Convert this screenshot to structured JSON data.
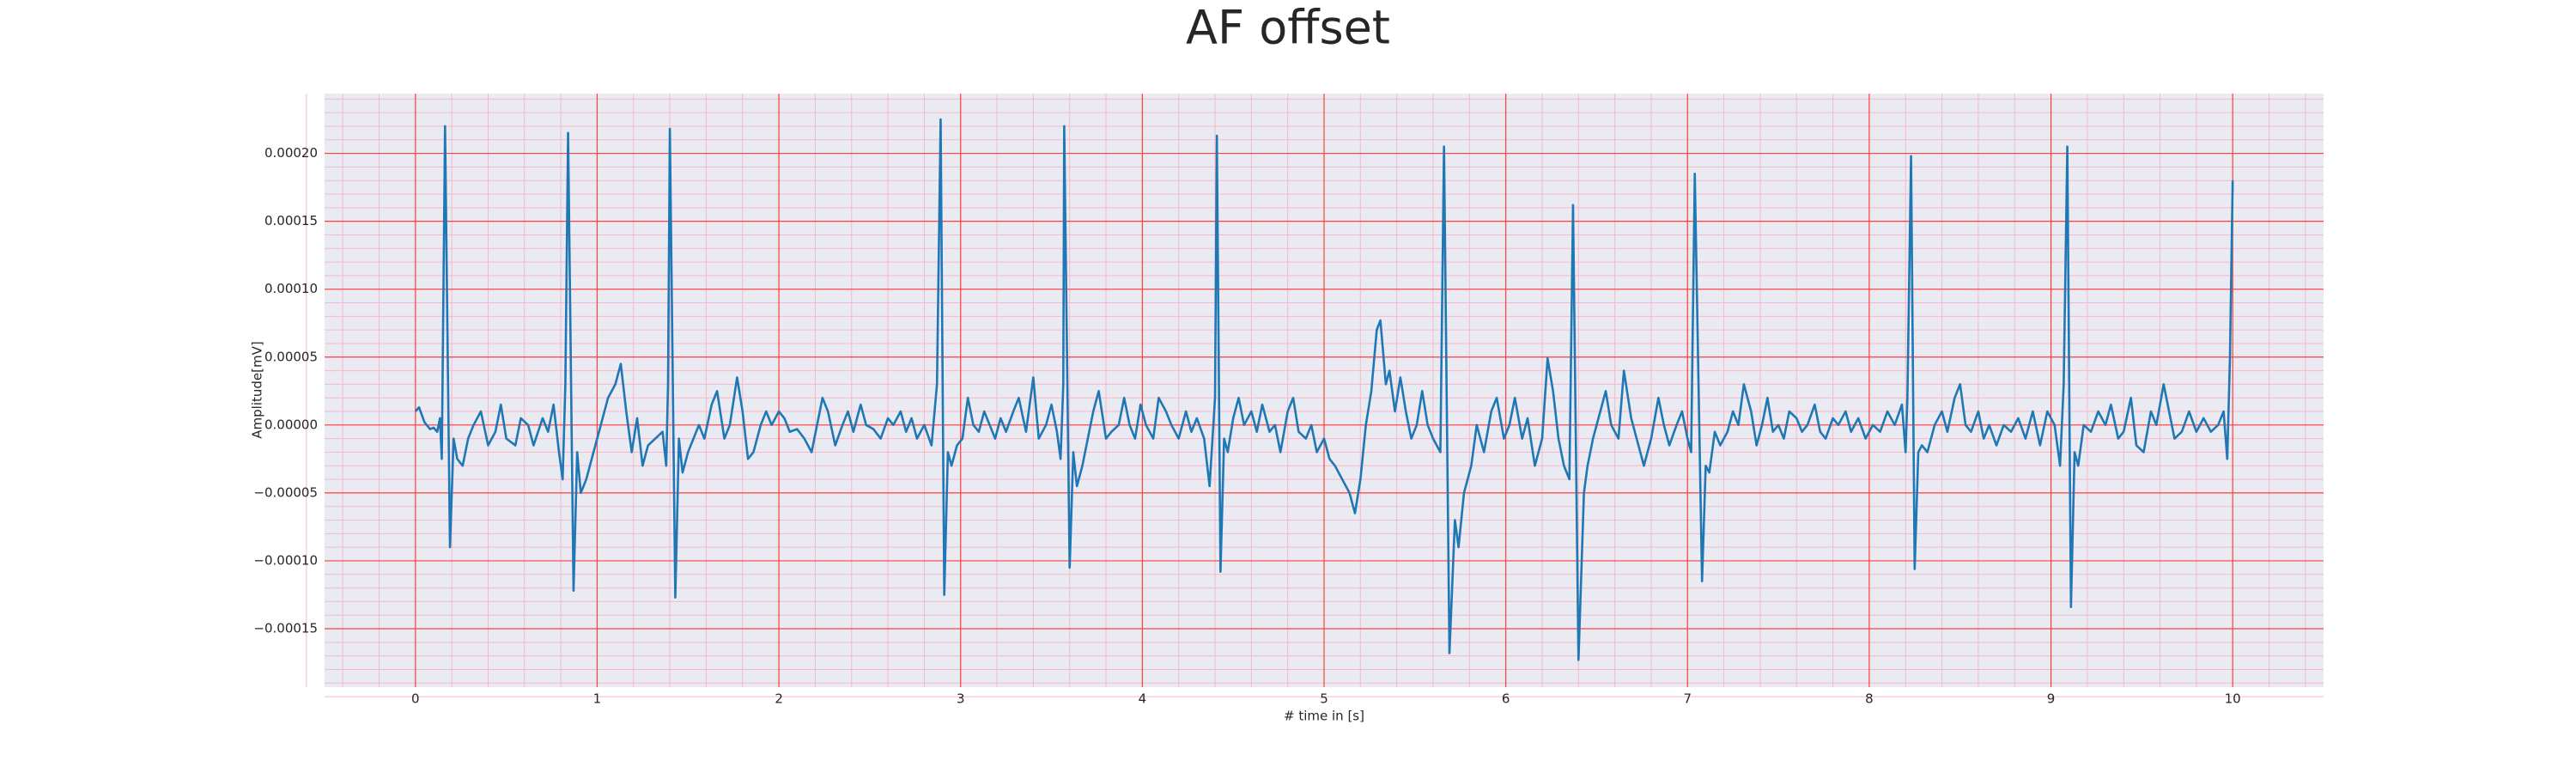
{
  "chart_data": {
    "type": "line",
    "title": "AF offset",
    "xlabel": "# time in [s]",
    "ylabel": "Amplitude[mV]",
    "color": "#1f77b4",
    "background": "#eaeaf2",
    "grid": true,
    "grid_color": "#ff4040",
    "minor_grid": true,
    "minor_grid_color": "#f6b8c8",
    "xlim": [
      -0.5,
      10.5
    ],
    "xticks": [
      0,
      1,
      2,
      3,
      4,
      5,
      6,
      7,
      8,
      9,
      10
    ],
    "ylim": [
      -0.000193,
      0.000244
    ],
    "yticks": [
      {
        "value": -0.00015,
        "label": "−0.00015"
      },
      {
        "value": -0.0001,
        "label": "−0.00010"
      },
      {
        "value": -5e-05,
        "label": "−0.00005"
      },
      {
        "value": 0,
        "label": "0.00000"
      },
      {
        "value": 5e-05,
        "label": "0.00005"
      },
      {
        "value": 0.0001,
        "label": "0.00010"
      },
      {
        "value": 0.00015,
        "label": "0.00015"
      },
      {
        "value": 0.0002,
        "label": "0.00020"
      }
    ],
    "x": [
      0.0,
      0.02,
      0.05,
      0.08,
      0.1,
      0.12,
      0.135,
      0.145,
      0.163,
      0.19,
      0.21,
      0.23,
      0.26,
      0.29,
      0.32,
      0.36,
      0.4,
      0.44,
      0.47,
      0.5,
      0.55,
      0.58,
      0.62,
      0.65,
      0.7,
      0.73,
      0.76,
      0.79,
      0.81,
      0.825,
      0.84,
      0.87,
      0.89,
      0.91,
      0.94,
      0.98,
      1.02,
      1.06,
      1.1,
      1.13,
      1.16,
      1.19,
      1.22,
      1.25,
      1.28,
      1.32,
      1.36,
      1.38,
      1.39,
      1.4,
      1.43,
      1.45,
      1.47,
      1.5,
      1.53,
      1.56,
      1.59,
      1.63,
      1.66,
      1.7,
      1.73,
      1.77,
      1.8,
      1.83,
      1.86,
      1.9,
      1.93,
      1.96,
      2.0,
      2.03,
      2.06,
      2.1,
      2.14,
      2.18,
      2.21,
      2.24,
      2.27,
      2.31,
      2.35,
      2.38,
      2.41,
      2.45,
      2.48,
      2.52,
      2.56,
      2.6,
      2.63,
      2.67,
      2.7,
      2.73,
      2.76,
      2.8,
      2.84,
      2.87,
      2.89,
      2.91,
      2.93,
      2.95,
      2.98,
      3.01,
      3.04,
      3.07,
      3.1,
      3.13,
      3.16,
      3.19,
      3.22,
      3.25,
      3.29,
      3.32,
      3.36,
      3.4,
      3.43,
      3.47,
      3.5,
      3.53,
      3.55,
      3.565,
      3.57,
      3.6,
      3.62,
      3.64,
      3.67,
      3.7,
      3.73,
      3.76,
      3.8,
      3.83,
      3.87,
      3.9,
      3.93,
      3.96,
      3.99,
      4.02,
      4.06,
      4.09,
      4.13,
      4.16,
      4.2,
      4.24,
      4.27,
      4.3,
      4.34,
      4.37,
      4.4,
      4.41,
      4.43,
      4.45,
      4.47,
      4.5,
      4.53,
      4.56,
      4.6,
      4.63,
      4.66,
      4.7,
      4.73,
      4.76,
      4.8,
      4.83,
      4.86,
      4.9,
      4.93,
      4.96,
      5.0,
      5.03,
      5.06,
      5.1,
      5.14,
      5.17,
      5.2,
      5.23,
      5.26,
      5.29,
      5.31,
      5.34,
      5.36,
      5.39,
      5.42,
      5.45,
      5.48,
      5.51,
      5.54,
      5.57,
      5.6,
      5.64,
      5.66,
      5.69,
      5.72,
      5.74,
      5.77,
      5.81,
      5.84,
      5.88,
      5.92,
      5.95,
      5.99,
      6.02,
      6.05,
      6.09,
      6.12,
      6.16,
      6.2,
      6.23,
      6.26,
      6.29,
      6.32,
      6.35,
      6.37,
      6.4,
      6.43,
      6.45,
      6.48,
      6.52,
      6.55,
      6.58,
      6.62,
      6.65,
      6.69,
      6.72,
      6.76,
      6.8,
      6.84,
      6.87,
      6.9,
      6.94,
      6.97,
      7.0,
      7.02,
      7.04,
      7.08,
      7.1,
      7.12,
      7.15,
      7.18,
      7.22,
      7.25,
      7.28,
      7.31,
      7.35,
      7.38,
      7.41,
      7.44,
      7.47,
      7.5,
      7.53,
      7.56,
      7.6,
      7.63,
      7.66,
      7.7,
      7.73,
      7.76,
      7.8,
      7.83,
      7.87,
      7.9,
      7.94,
      7.98,
      8.02,
      8.06,
      8.1,
      8.14,
      8.18,
      8.2,
      8.21,
      8.23,
      8.25,
      8.27,
      8.29,
      8.32,
      8.36,
      8.4,
      8.43,
      8.47,
      8.5,
      8.53,
      8.56,
      8.6,
      8.63,
      8.66,
      8.7,
      8.74,
      8.78,
      8.82,
      8.86,
      8.9,
      8.94,
      8.98,
      9.02,
      9.05,
      9.07,
      9.09,
      9.11,
      9.13,
      9.15,
      9.18,
      9.22,
      9.26,
      9.3,
      9.33,
      9.37,
      9.4,
      9.44,
      9.47,
      9.51,
      9.55,
      9.58,
      9.62,
      9.65,
      9.68,
      9.72,
      9.76,
      9.8,
      9.84,
      9.88,
      9.92,
      9.95,
      9.97,
      9.985,
      10.0
    ],
    "values": [
      1e-05,
      1.3e-05,
      2e-06,
      -3e-06,
      -2e-06,
      -5e-06,
      5e-06,
      -2.5e-05,
      0.00022,
      -9e-05,
      -1e-05,
      -2.5e-05,
      -3e-05,
      -1e-05,
      0,
      1e-05,
      -1.5e-05,
      -5e-06,
      1.5e-05,
      -1e-05,
      -1.5e-05,
      5e-06,
      0,
      -1.5e-05,
      5e-06,
      -5e-06,
      1.5e-05,
      -2e-05,
      -4e-05,
      3e-05,
      0.000215,
      -0.000122,
      -2e-05,
      -5e-05,
      -4e-05,
      -2e-05,
      0,
      2e-05,
      3e-05,
      4.5e-05,
      1e-05,
      -2e-05,
      5e-06,
      -3e-05,
      -1.5e-05,
      -1e-05,
      -5e-06,
      -3e-05,
      3e-05,
      0.000218,
      -0.000127,
      -1e-05,
      -3.5e-05,
      -2e-05,
      -1e-05,
      0,
      -1e-05,
      1.5e-05,
      2.5e-05,
      -1e-05,
      0,
      3.5e-05,
      1e-05,
      -2.5e-05,
      -2e-05,
      0,
      1e-05,
      0,
      1e-05,
      5e-06,
      -5e-06,
      -3e-06,
      -1e-05,
      -2e-05,
      0,
      2e-05,
      1e-05,
      -1.5e-05,
      0,
      1e-05,
      -5e-06,
      1.5e-05,
      0,
      -3e-06,
      -1e-05,
      5e-06,
      0,
      1e-05,
      -5e-06,
      5e-06,
      -1e-05,
      0,
      -1.5e-05,
      3e-05,
      0.000225,
      -0.000125,
      -2e-05,
      -3e-05,
      -1.5e-05,
      -1e-05,
      2e-05,
      0,
      -5e-06,
      1e-05,
      0,
      -1e-05,
      5e-06,
      -5e-06,
      1e-05,
      2e-05,
      -5e-06,
      3.5e-05,
      -1e-05,
      0,
      1.5e-05,
      -5e-06,
      -2.5e-05,
      3e-05,
      0.00022,
      -0.000105,
      -2e-05,
      -4.5e-05,
      -3e-05,
      -1e-05,
      1e-05,
      2.5e-05,
      -1e-05,
      -5e-06,
      0,
      2e-05,
      0,
      -1e-05,
      1.5e-05,
      0,
      -1e-05,
      2e-05,
      1e-05,
      0,
      -1e-05,
      1e-05,
      -5e-06,
      5e-06,
      -1e-05,
      -4.5e-05,
      2e-05,
      0.000213,
      -0.000108,
      -1e-05,
      -2e-05,
      5e-06,
      2e-05,
      0,
      1e-05,
      -5e-06,
      1.5e-05,
      -5e-06,
      0,
      -2e-05,
      1e-05,
      2e-05,
      -5e-06,
      -1e-05,
      0,
      -2e-05,
      -1e-05,
      -2.5e-05,
      -3e-05,
      -4e-05,
      -5e-05,
      -6.5e-05,
      -4e-05,
      0,
      2.5e-05,
      7e-05,
      7.7e-05,
      3e-05,
      4e-05,
      1e-05,
      3.5e-05,
      1e-05,
      -1e-05,
      0,
      2.5e-05,
      0,
      -1e-05,
      -2e-05,
      0.000205,
      -0.000168,
      -7e-05,
      -9e-05,
      -5e-05,
      -3e-05,
      0,
      -2e-05,
      1e-05,
      2e-05,
      -1e-05,
      0,
      2e-05,
      -1e-05,
      5e-06,
      -3e-05,
      -1e-05,
      4.9e-05,
      2.5e-05,
      -1e-05,
      -3e-05,
      -4e-05,
      0.000162,
      -0.000173,
      -5e-05,
      -3e-05,
      -1e-05,
      1e-05,
      2.5e-05,
      0,
      -1e-05,
      4e-05,
      5e-06,
      -1e-05,
      -3e-05,
      -1e-05,
      2e-05,
      0,
      -1.5e-05,
      0,
      1e-05,
      -1e-05,
      -2e-05,
      0.000185,
      -0.000115,
      -3e-05,
      -3.5e-05,
      -5e-06,
      -1.5e-05,
      -5e-06,
      1e-05,
      0,
      3e-05,
      1e-05,
      -1.5e-05,
      0,
      2e-05,
      -5e-06,
      0,
      -1e-05,
      1e-05,
      5e-06,
      -5e-06,
      0,
      1.5e-05,
      -5e-06,
      -1e-05,
      5e-06,
      0,
      1e-05,
      -5e-06,
      5e-06,
      -1e-05,
      0,
      -5e-06,
      1e-05,
      0,
      1.5e-05,
      -2e-05,
      2e-05,
      0.000198,
      -0.000106,
      -2e-05,
      -1.5e-05,
      -2e-05,
      0,
      1e-05,
      -5e-06,
      2e-05,
      3e-05,
      0,
      -5e-06,
      1e-05,
      -1e-05,
      0,
      -1.5e-05,
      0,
      -5e-06,
      5e-06,
      -1e-05,
      1e-05,
      -1.5e-05,
      1e-05,
      0,
      -3e-05,
      3e-05,
      0.000205,
      -0.000134,
      -2e-05,
      -3e-05,
      0,
      -5e-06,
      1e-05,
      0,
      1.5e-05,
      -1e-05,
      -5e-06,
      2e-05,
      -1.5e-05,
      -2e-05,
      1e-05,
      0,
      3e-05,
      1e-05,
      -1e-05,
      -5e-06,
      1e-05,
      -5e-06,
      5e-06,
      -5e-06,
      0,
      1e-05,
      -2.5e-05,
      5e-05,
      0.00018
    ]
  }
}
